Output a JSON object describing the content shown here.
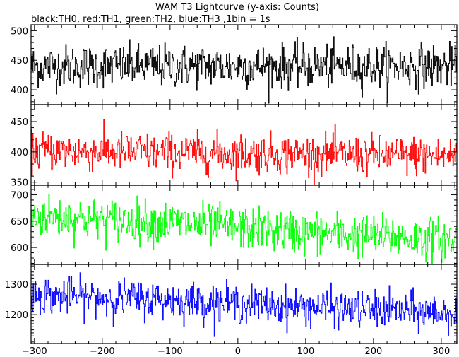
{
  "chart_data": {
    "type": "line",
    "title": "WAM T3 Lightcurve (y-axis: Counts)",
    "subtitle": "black:TH0, red:TH1, green:TH2, blue:TH3 ,1bin = 1s",
    "xlabel": "",
    "ylabel": "",
    "xlim": [
      -305,
      323
    ],
    "x_ticks": [
      -300,
      -200,
      -100,
      0,
      100,
      200,
      300
    ],
    "x_tick_labels": [
      "−300",
      "−200",
      "−100",
      "0",
      "100",
      "200",
      "300"
    ],
    "bin_size_s": 1,
    "grid": false,
    "panels": [
      {
        "series": "TH0",
        "color": "#000000",
        "ylim": [
          375,
          510
        ],
        "y_ticks": [
          400,
          450,
          500
        ],
        "mean_trend": [
          [
            -305,
            440
          ],
          [
            323,
            440
          ]
        ],
        "noise_sigma": 18
      },
      {
        "series": "TH1",
        "color": "#ff0000",
        "ylim": [
          345,
          478
        ],
        "y_ticks": [
          350,
          400,
          450
        ],
        "mean_trend": [
          [
            -305,
            402
          ],
          [
            323,
            393
          ]
        ],
        "noise_sigma": 16
      },
      {
        "series": "TH2",
        "color": "#00ff00",
        "ylim": [
          568,
          718
        ],
        "y_ticks": [
          600,
          650,
          700
        ],
        "mean_trend": [
          [
            -305,
            660
          ],
          [
            -100,
            647
          ],
          [
            100,
            628
          ],
          [
            323,
            614
          ]
        ],
        "noise_sigma": 20
      },
      {
        "series": "TH3",
        "color": "#0000ff",
        "ylim": [
          1105,
          1365
        ],
        "y_ticks": [
          1200,
          1300
        ],
        "mean_trend": [
          [
            -305,
            1265
          ],
          [
            -100,
            1248
          ],
          [
            100,
            1225
          ],
          [
            323,
            1205
          ]
        ],
        "noise_sigma": 30
      }
    ]
  }
}
